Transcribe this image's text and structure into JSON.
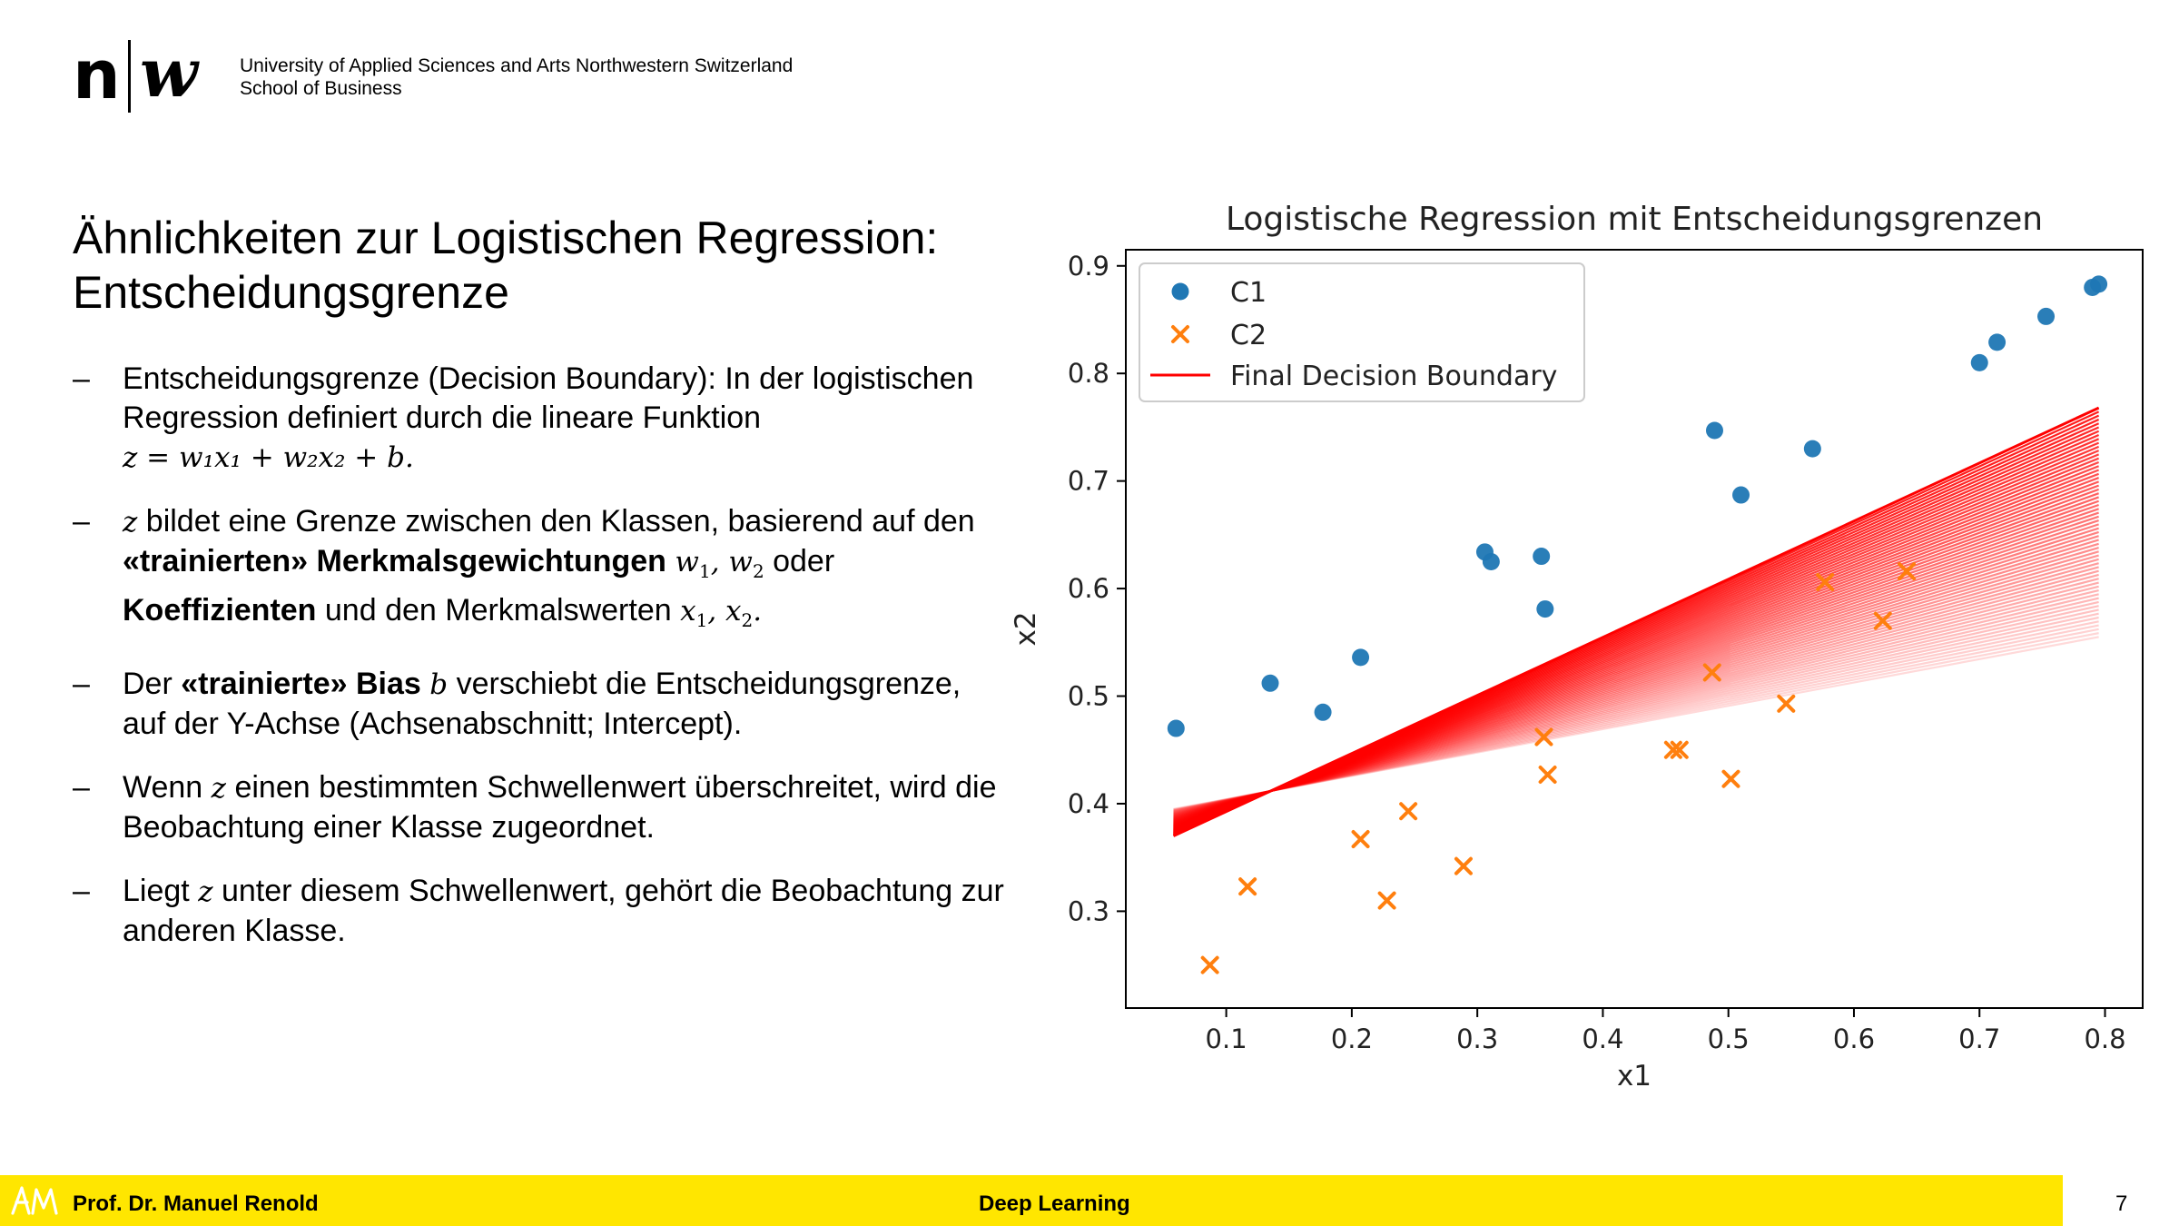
{
  "header": {
    "logo_text_n": "n",
    "logo_text_w": "w",
    "institution_line1": "University of Applied Sciences and Arts Northwestern Switzerland",
    "institution_line2": "School of Business"
  },
  "slide": {
    "title_line1": "Ähnlichkeiten zur Logistischen Regression:",
    "title_line2": "Entscheidungsgrenze",
    "bullet_dash": "–",
    "bullets": [
      {
        "text1": "Entscheidungsgrenze (Decision Boundary): In der logistischen Regression definiert durch die lineare Funktion",
        "formula": "z = w₁x₁ + w₂x₂ + b."
      },
      {
        "text1": " bildet eine Grenze zwischen den Klassen, basierend auf den ",
        "bold1": "«trainierten» Merkmalsgewichtungen",
        "text2": " oder ",
        "bold2": "Koeffizienten",
        "text3": " und den Merkmalswerten "
      },
      {
        "text1": "Der ",
        "bold1": "«trainierte» Bias",
        "text2": " verschiebt die Entscheidungsgrenze, auf der Y-Achse (Achsenabschnitt; Intercept)."
      },
      {
        "text1": "Wenn ",
        "text2": " einen bestimmten Schwellenwert überschreitet, wird die Beobachtung einer Klasse zugeordnet."
      },
      {
        "text1": "Liegt ",
        "text2": " unter diesem Schwellenwert, gehört die Beobachtung zur anderen Klasse."
      }
    ]
  },
  "chart_data": {
    "type": "scatter",
    "title": "Logistische Regression mit Entscheidungsgrenzen",
    "xlabel": "x1",
    "ylabel": "x2",
    "xlim": [
      0.02,
      0.83
    ],
    "ylim": [
      0.21,
      0.915
    ],
    "xticks": [
      0.1,
      0.2,
      0.3,
      0.4,
      0.5,
      0.6,
      0.7,
      0.8
    ],
    "yticks": [
      0.3,
      0.4,
      0.5,
      0.6,
      0.7,
      0.8,
      0.9
    ],
    "legend_position": "top-left",
    "series": [
      {
        "name": "C1",
        "marker": "circle",
        "color": "#1f77b4",
        "points": [
          [
            0.06,
            0.47
          ],
          [
            0.135,
            0.512
          ],
          [
            0.177,
            0.485
          ],
          [
            0.207,
            0.536
          ],
          [
            0.306,
            0.634
          ],
          [
            0.311,
            0.625
          ],
          [
            0.351,
            0.63
          ],
          [
            0.354,
            0.581
          ],
          [
            0.489,
            0.747
          ],
          [
            0.51,
            0.687
          ],
          [
            0.567,
            0.73
          ],
          [
            0.7,
            0.81
          ],
          [
            0.714,
            0.829
          ],
          [
            0.753,
            0.853
          ],
          [
            0.79,
            0.88
          ],
          [
            0.795,
            0.883
          ]
        ]
      },
      {
        "name": "C2",
        "marker": "x",
        "color": "#ff7f0e",
        "points": [
          [
            0.087,
            0.25
          ],
          [
            0.117,
            0.323
          ],
          [
            0.207,
            0.367
          ],
          [
            0.228,
            0.31
          ],
          [
            0.245,
            0.393
          ],
          [
            0.289,
            0.342
          ],
          [
            0.353,
            0.462
          ],
          [
            0.356,
            0.427
          ],
          [
            0.456,
            0.45
          ],
          [
            0.461,
            0.45
          ],
          [
            0.487,
            0.522
          ],
          [
            0.502,
            0.423
          ],
          [
            0.546,
            0.493
          ],
          [
            0.577,
            0.606
          ],
          [
            0.623,
            0.57
          ],
          [
            0.642,
            0.616
          ]
        ]
      },
      {
        "name": "Final Decision Boundary",
        "type": "line",
        "color": "#ff0000",
        "points": [
          [
            0.058,
            0.37
          ],
          [
            0.795,
            0.768
          ]
        ]
      }
    ],
    "boundary_sweep": {
      "color": "#ff0000",
      "x_range": [
        0.058,
        0.795
      ],
      "pivot": [
        0.375,
        0.54
      ],
      "start_line": [
        [
          0.058,
          0.395
        ],
        [
          0.795,
          0.555
        ]
      ],
      "end_line": [
        [
          0.058,
          0.37
        ],
        [
          0.795,
          0.768
        ]
      ],
      "count": 60
    }
  },
  "footer": {
    "logo": "AM",
    "author": "Prof. Dr. Manuel Renold",
    "course": "Deep Learning",
    "page": "7",
    "bar_color": "#ffe600"
  }
}
